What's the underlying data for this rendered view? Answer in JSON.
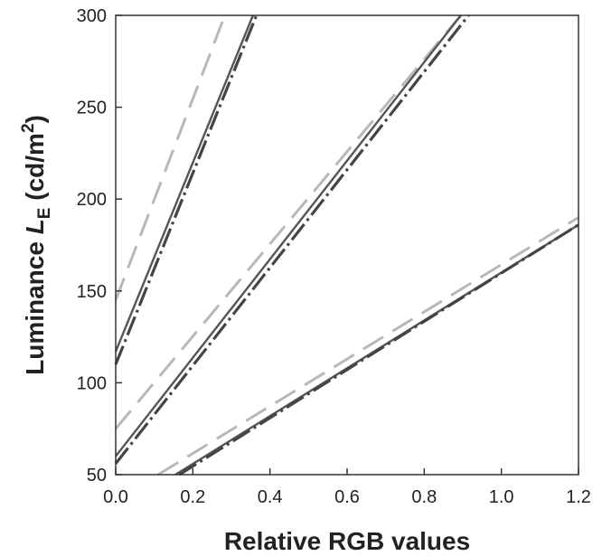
{
  "chart_data": {
    "type": "line",
    "title": "",
    "xlabel": "Relative RGB values",
    "ylabel": {
      "prefix": "Luminance ",
      "symbol": "L",
      "subscript": "E",
      "unit_open": " (cd/m",
      "superscript": "2",
      "unit_close": ")"
    },
    "xlim": [
      0.0,
      1.2
    ],
    "ylim": [
      50,
      300
    ],
    "xticks": [
      "0.0",
      "0.2",
      "0.4",
      "0.6",
      "0.8",
      "1.0",
      "1.2"
    ],
    "yticks": [
      "50",
      "100",
      "150",
      "200",
      "250",
      "300"
    ],
    "grid": false,
    "series": [
      {
        "style": "dashed-light",
        "color": "#b8b8b8",
        "x": [
          0.0,
          0.283
        ],
        "y": [
          145,
          300
        ]
      },
      {
        "style": "solid",
        "color": "#555555",
        "x": [
          0.0,
          0.356
        ],
        "y": [
          117,
          300
        ]
      },
      {
        "style": "dash-dot-dark",
        "color": "#444444",
        "x": [
          0.0,
          0.365
        ],
        "y": [
          110,
          300
        ]
      },
      {
        "style": "dashed-light",
        "color": "#b8b8b8",
        "x": [
          0.0,
          0.895
        ],
        "y": [
          75,
          300
        ]
      },
      {
        "style": "solid",
        "color": "#555555",
        "x": [
          0.0,
          0.895
        ],
        "y": [
          60,
          300
        ]
      },
      {
        "style": "dash-dot-dark",
        "color": "#444444",
        "x": [
          0.0,
          0.915
        ],
        "y": [
          56,
          300
        ]
      },
      {
        "style": "dashed-light",
        "color": "#b8b8b8",
        "x": [
          0.11,
          1.2
        ],
        "y": [
          50,
          190
        ]
      },
      {
        "style": "solid",
        "color": "#555555",
        "x": [
          0.155,
          1.2
        ],
        "y": [
          50,
          186
        ]
      },
      {
        "style": "dash-dot-dark",
        "color": "#444444",
        "x": [
          0.165,
          1.2
        ],
        "y": [
          50,
          186
        ]
      }
    ]
  }
}
